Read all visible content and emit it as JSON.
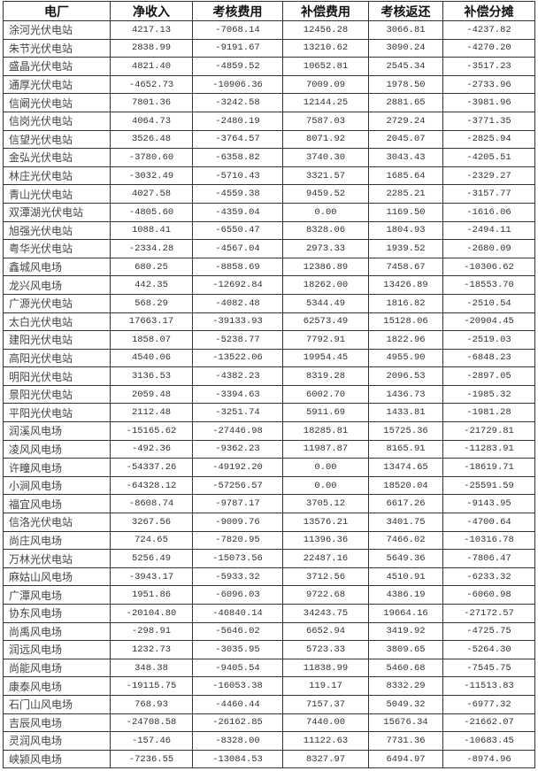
{
  "table": {
    "headers": [
      "电厂",
      "净收入",
      "考核费用",
      "补偿费用",
      "考核返还",
      "补偿分摊"
    ],
    "rows": [
      [
        "涂河光伏电站",
        "4217.13",
        "-7068.14",
        "12456.28",
        "3066.81",
        "-4237.82"
      ],
      [
        "朱节光伏电站",
        "2838.99",
        "-9191.67",
        "13210.62",
        "3090.24",
        "-4270.20"
      ],
      [
        "盛晶光伏电站",
        "4821.40",
        "-4859.52",
        "10652.81",
        "2545.34",
        "-3517.23"
      ],
      [
        "通厚光伏电站",
        "-4652.73",
        "-10906.36",
        "7009.09",
        "1978.50",
        "-2733.96"
      ],
      [
        "信阚光伏电站",
        "7801.36",
        "-3242.58",
        "12144.25",
        "2881.65",
        "-3981.96"
      ],
      [
        "信岗光伏电站",
        "4064.73",
        "-2480.19",
        "7587.03",
        "2729.24",
        "-3771.35"
      ],
      [
        "信望光伏电站",
        "3526.48",
        "-3764.57",
        "8071.92",
        "2045.07",
        "-2825.94"
      ],
      [
        "金弘光伏电站",
        "-3780.60",
        "-6358.82",
        "3740.30",
        "3043.43",
        "-4205.51"
      ],
      [
        "林庄光伏电站",
        "-3032.49",
        "-5710.43",
        "3321.57",
        "1685.64",
        "-2329.27"
      ],
      [
        "青山光伏电站",
        "4027.58",
        "-4559.38",
        "9459.52",
        "2285.21",
        "-3157.77"
      ],
      [
        "双潭湖光伏电站",
        "-4805.60",
        "-4359.04",
        "0.00",
        "1169.50",
        "-1616.06"
      ],
      [
        "旭强光伏电站",
        "1088.41",
        "-6550.47",
        "8328.06",
        "1804.93",
        "-2494.11"
      ],
      [
        "粤华光伏电站",
        "-2334.28",
        "-4567.04",
        "2973.33",
        "1939.52",
        "-2680.09"
      ],
      [
        "鑫城风电场",
        "680.25",
        "-8858.69",
        "12386.89",
        "7458.67",
        "-10306.62"
      ],
      [
        "龙兴风电场",
        "442.35",
        "-12692.84",
        "18262.00",
        "13426.89",
        "-18553.70"
      ],
      [
        "广源光伏电站",
        "568.29",
        "-4082.48",
        "5344.49",
        "1816.82",
        "-2510.54"
      ],
      [
        "太白光伏电站",
        "17663.17",
        "-39133.93",
        "62573.49",
        "15128.06",
        "-20904.45"
      ],
      [
        "建阳光伏电站",
        "1858.07",
        "-5238.77",
        "7792.91",
        "1822.96",
        "-2519.03"
      ],
      [
        "高阳光伏电站",
        "4540.06",
        "-13522.06",
        "19954.45",
        "4955.90",
        "-6848.23"
      ],
      [
        "明阳光伏电站",
        "3136.53",
        "-4382.23",
        "8319.28",
        "2096.53",
        "-2897.05"
      ],
      [
        "景阳光伏电站",
        "2059.48",
        "-3394.63",
        "6002.70",
        "1436.73",
        "-1985.32"
      ],
      [
        "平阳光伏电站",
        "2112.48",
        "-3251.74",
        "5911.69",
        "1433.81",
        "-1981.28"
      ],
      [
        "润溪风电场",
        "-15165.62",
        "-27446.98",
        "18285.81",
        "15725.36",
        "-21729.81"
      ],
      [
        "凌风风电场",
        "-492.36",
        "-9362.23",
        "11987.87",
        "8165.91",
        "-11283.91"
      ],
      [
        "许疃风电场",
        "-54337.26",
        "-49192.20",
        "0.00",
        "13474.65",
        "-18619.71"
      ],
      [
        "小涧风电场",
        "-64328.12",
        "-57256.57",
        "0.00",
        "18520.04",
        "-25591.59"
      ],
      [
        "福宜风电场",
        "-8608.74",
        "-9787.17",
        "3705.12",
        "6617.26",
        "-9143.95"
      ],
      [
        "信洛光伏电站",
        "3267.56",
        "-9009.76",
        "13576.21",
        "3401.75",
        "-4700.64"
      ],
      [
        "尚庄风电场",
        "724.65",
        "-7820.95",
        "11396.36",
        "7466.02",
        "-10316.78"
      ],
      [
        "万林光伏电站",
        "5256.49",
        "-15073.56",
        "22487.16",
        "5649.36",
        "-7806.47"
      ],
      [
        "麻姑山风电场",
        "-3943.17",
        "-5933.32",
        "3712.56",
        "4510.91",
        "-6233.32"
      ],
      [
        "广潭风电场",
        "1951.86",
        "-6096.03",
        "9722.68",
        "4386.19",
        "-6060.98"
      ],
      [
        "协东风电场",
        "-20104.80",
        "-46840.14",
        "34243.75",
        "19664.16",
        "-27172.57"
      ],
      [
        "尚禹风电场",
        "-298.91",
        "-5646.02",
        "6652.94",
        "3419.92",
        "-4725.75"
      ],
      [
        "润远风电场",
        "1232.73",
        "-3035.95",
        "5723.33",
        "3809.65",
        "-5264.30"
      ],
      [
        "尚能风电场",
        "348.38",
        "-9405.54",
        "11838.99",
        "5460.68",
        "-7545.75"
      ],
      [
        "康泰风电场",
        "-19115.75",
        "-16053.38",
        "119.17",
        "8332.29",
        "-11513.83"
      ],
      [
        "石门山风电场",
        "768.93",
        "-4460.44",
        "7157.37",
        "5049.32",
        "-6977.32"
      ],
      [
        "吉辰风电场",
        "-24708.58",
        "-26162.85",
        "7440.00",
        "15676.34",
        "-21662.07"
      ],
      [
        "灵润风电场",
        "-157.46",
        "-8328.00",
        "11122.63",
        "7731.36",
        "-10683.45"
      ],
      [
        "峡颍风电场",
        "-7236.55",
        "-13084.53",
        "8327.97",
        "6494.97",
        "-8974.96"
      ]
    ]
  }
}
